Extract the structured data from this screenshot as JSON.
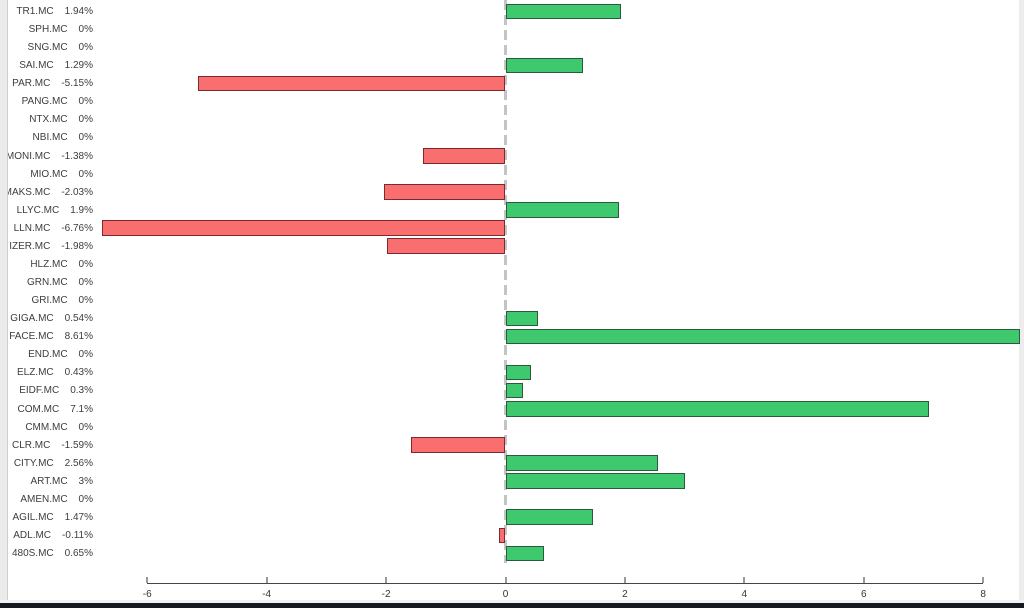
{
  "chart_data": {
    "type": "bar",
    "orientation": "horizontal",
    "title": "",
    "xlabel": "",
    "ylabel": "",
    "categories": [
      "TR1.MC",
      "SPH.MC",
      "SNG.MC",
      "SAI.MC",
      "PAR.MC",
      "PANG.MC",
      "NTX.MC",
      "NBI.MC",
      "MONI.MC",
      "MIO.MC",
      "MAKS.MC",
      "LLYC.MC",
      "LLN.MC",
      "IZER.MC",
      "HLZ.MC",
      "GRN.MC",
      "GRI.MC",
      "GIGA.MC",
      "FACE.MC",
      "END.MC",
      "ELZ.MC",
      "EIDF.MC",
      "COM.MC",
      "CMM.MC",
      "CLR.MC",
      "CITY.MC",
      "ART.MC",
      "AMEN.MC",
      "AGIL.MC",
      "ADL.MC",
      "480S.MC"
    ],
    "values": [
      1.94,
      0,
      0,
      1.29,
      -5.15,
      0,
      0,
      0,
      -1.38,
      0,
      -2.03,
      1.9,
      -6.76,
      -1.98,
      0,
      0,
      0,
      0.54,
      8.61,
      0,
      0.43,
      0.3,
      7.1,
      0,
      -1.59,
      2.56,
      3,
      0,
      1.47,
      -0.11,
      0.65
    ],
    "value_labels": [
      "1.94%",
      "0%",
      "0%",
      "1.29%",
      "-5.15%",
      "0%",
      "0%",
      "0%",
      "-1.38%",
      "0%",
      "-2.03%",
      "1.9%",
      "-6.76%",
      "-1.98%",
      "0%",
      "0%",
      "0%",
      "0.54%",
      "8.61%",
      "0%",
      "0.43%",
      "0.3%",
      "7.1%",
      "0%",
      "-1.59%",
      "2.56%",
      "3%",
      "0%",
      "1.47%",
      "-0.11%",
      "0.65%"
    ],
    "x_ticks": [
      -6,
      -4,
      -2,
      0,
      2,
      4,
      6,
      8
    ],
    "xlim": [
      -6,
      8
    ],
    "grid": false,
    "legend": "none",
    "zero_line": true,
    "colors": {
      "positive_fill": "#3ec96f",
      "positive_border": "#2b5a3c",
      "negative_fill": "#f96e6e",
      "negative_border": "#7c2a2e",
      "zero_line": "#c4c4c4",
      "axis_line": "#454545",
      "text": "#3d3d3d"
    }
  }
}
